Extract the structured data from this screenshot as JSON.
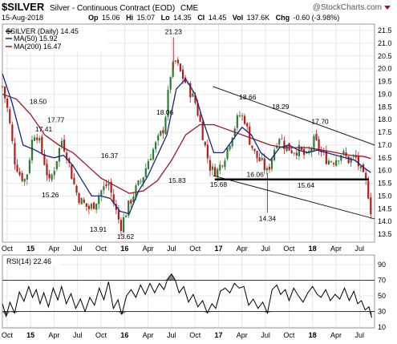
{
  "header": {
    "symbol": "$SILVER",
    "description": "Silver - Continuous Contract (EOD)",
    "exchange": "CME",
    "brand": "@StockCharts.com",
    "date": "15-Aug-2018",
    "quote": {
      "op_label": "Op",
      "op": "15.06",
      "hi_label": "Hi",
      "hi": "15.07",
      "lo_label": "Lo",
      "lo": "14.35",
      "cl_label": "Cl",
      "cl": "14.45",
      "vol_label": "Vol",
      "vol": "137.6K",
      "chg_label": "Chg",
      "chg": "-0.60 (-3.98%)"
    }
  },
  "colors": {
    "up": "#2e7d32",
    "down": "#b71c1c",
    "ma50": "#1a237e",
    "ma200": "#a0142a",
    "grid": "#d8d8d8",
    "trend": "#222222",
    "support": "#000000",
    "rsi": "#000000",
    "rsi_fill": "#666666"
  },
  "chart_data": {
    "type": "candlestick",
    "legend": {
      "position": "top-left",
      "entries": [
        {
          "label": "$SILVER (Daily) 14.45",
          "color": "#000000"
        },
        {
          "label": "MA(50) 15.92",
          "color": "#1a237e"
        },
        {
          "label": "MA(200) 16.47",
          "color": "#a0142a"
        }
      ]
    },
    "price_axis": {
      "min": 13.5,
      "max": 21.5,
      "position": "right",
      "ticks": [
        "21.5",
        "21.0",
        "20.5",
        "20.0",
        "19.5",
        "19.0",
        "18.5",
        "18.0",
        "17.5",
        "17.0",
        "16.5",
        "16.0",
        "15.5",
        "15.0",
        "14.5",
        "14.0",
        "13.5"
      ]
    },
    "time_axis": {
      "start": 2014.7,
      "end": 2018.66,
      "labels": [
        {
          "text": "Oct",
          "t": 2014.75
        },
        {
          "text": "15",
          "t": 2015.0
        },
        {
          "text": "Apr",
          "t": 2015.25
        },
        {
          "text": "Jul",
          "t": 2015.5
        },
        {
          "text": "Oct",
          "t": 2015.75
        },
        {
          "text": "16",
          "t": 2016.0
        },
        {
          "text": "Apr",
          "t": 2016.25
        },
        {
          "text": "Jul",
          "t": 2016.5
        },
        {
          "text": "Oct",
          "t": 2016.75
        },
        {
          "text": "17",
          "t": 2017.0
        },
        {
          "text": "Apr",
          "t": 2017.25
        },
        {
          "text": "Jul",
          "t": 2017.5
        },
        {
          "text": "Oct",
          "t": 2017.75
        },
        {
          "text": "18",
          "t": 2018.0
        },
        {
          "text": "Apr",
          "t": 2018.25
        },
        {
          "text": "Jul",
          "t": 2018.5
        }
      ]
    },
    "close_path": [
      [
        2014.7,
        19.3
      ],
      [
        2014.76,
        18.3
      ],
      [
        2014.83,
        16.4
      ],
      [
        2014.89,
        15.8
      ],
      [
        2014.95,
        15.6
      ],
      [
        2015.03,
        17.5
      ],
      [
        2015.07,
        17.4
      ],
      [
        2015.13,
        16.6
      ],
      [
        2015.2,
        15.5
      ],
      [
        2015.26,
        16.2
      ],
      [
        2015.33,
        17.2
      ],
      [
        2015.38,
        16.7
      ],
      [
        2015.45,
        15.6
      ],
      [
        2015.5,
        15.0
      ],
      [
        2015.56,
        14.7
      ],
      [
        2015.62,
        14.5
      ],
      [
        2015.68,
        14.7
      ],
      [
        2015.75,
        15.2
      ],
      [
        2015.83,
        15.5
      ],
      [
        2015.9,
        14.5
      ],
      [
        2015.96,
        13.8
      ],
      [
        2016.04,
        14.6
      ],
      [
        2016.11,
        15.2
      ],
      [
        2016.19,
        15.7
      ],
      [
        2016.26,
        16.5
      ],
      [
        2016.33,
        17.0
      ],
      [
        2016.42,
        17.7
      ],
      [
        2016.49,
        19.8
      ],
      [
        2016.54,
        20.3
      ],
      [
        2016.6,
        19.8
      ],
      [
        2016.67,
        19.3
      ],
      [
        2016.75,
        18.7
      ],
      [
        2016.81,
        17.8
      ],
      [
        2016.87,
        16.7
      ],
      [
        2016.92,
        16.0
      ],
      [
        2016.99,
        16.0
      ],
      [
        2017.07,
        16.6
      ],
      [
        2017.15,
        17.5
      ],
      [
        2017.22,
        18.2
      ],
      [
        2017.28,
        18.0
      ],
      [
        2017.33,
        17.2
      ],
      [
        2017.39,
        16.6
      ],
      [
        2017.46,
        16.3
      ],
      [
        2017.52,
        15.9
      ],
      [
        2017.58,
        16.7
      ],
      [
        2017.64,
        17.4
      ],
      [
        2017.7,
        17.0
      ],
      [
        2017.78,
        16.8
      ],
      [
        2017.86,
        16.8
      ],
      [
        2017.94,
        16.5
      ],
      [
        2018.02,
        17.2
      ],
      [
        2018.09,
        16.7
      ],
      [
        2018.16,
        16.4
      ],
      [
        2018.23,
        16.4
      ],
      [
        2018.31,
        16.7
      ],
      [
        2018.38,
        16.4
      ],
      [
        2018.46,
        16.5
      ],
      [
        2018.52,
        15.9
      ],
      [
        2018.58,
        15.4
      ],
      [
        2018.62,
        14.45
      ]
    ],
    "ma50": [
      [
        2014.7,
        19.8
      ],
      [
        2014.8,
        18.7
      ],
      [
        2014.92,
        17.0
      ],
      [
        2015.05,
        16.8
      ],
      [
        2015.15,
        16.6
      ],
      [
        2015.25,
        16.5
      ],
      [
        2015.35,
        16.6
      ],
      [
        2015.45,
        16.2
      ],
      [
        2015.55,
        15.6
      ],
      [
        2015.65,
        15.0
      ],
      [
        2015.75,
        15.0
      ],
      [
        2015.85,
        14.9
      ],
      [
        2015.95,
        14.4
      ],
      [
        2016.05,
        14.3
      ],
      [
        2016.15,
        15.2
      ],
      [
        2016.25,
        15.8
      ],
      [
        2016.35,
        16.6
      ],
      [
        2016.45,
        17.4
      ],
      [
        2016.55,
        19.2
      ],
      [
        2016.65,
        19.6
      ],
      [
        2016.75,
        19.0
      ],
      [
        2016.85,
        17.8
      ],
      [
        2016.95,
        16.7
      ],
      [
        2017.05,
        16.7
      ],
      [
        2017.15,
        17.2
      ],
      [
        2017.25,
        17.7
      ],
      [
        2017.35,
        17.4
      ],
      [
        2017.45,
        16.7
      ],
      [
        2017.55,
        16.4
      ],
      [
        2017.65,
        16.9
      ],
      [
        2017.75,
        17.0
      ],
      [
        2017.85,
        16.8
      ],
      [
        2017.95,
        16.7
      ],
      [
        2018.05,
        16.8
      ],
      [
        2018.15,
        16.7
      ],
      [
        2018.25,
        16.6
      ],
      [
        2018.35,
        16.5
      ],
      [
        2018.45,
        16.4
      ],
      [
        2018.55,
        16.1
      ],
      [
        2018.62,
        15.92
      ]
    ],
    "ma200": [
      [
        2014.7,
        19.0
      ],
      [
        2014.85,
        18.8
      ],
      [
        2015.0,
        18.2
      ],
      [
        2015.15,
        17.4
      ],
      [
        2015.3,
        17.0
      ],
      [
        2015.45,
        16.7
      ],
      [
        2015.6,
        16.2
      ],
      [
        2015.75,
        15.7
      ],
      [
        2015.9,
        15.4
      ],
      [
        2016.05,
        15.1
      ],
      [
        2016.2,
        15.2
      ],
      [
        2016.35,
        15.6
      ],
      [
        2016.5,
        16.4
      ],
      [
        2016.65,
        17.4
      ],
      [
        2016.8,
        17.8
      ],
      [
        2016.95,
        17.8
      ],
      [
        2017.1,
        17.6
      ],
      [
        2017.25,
        17.4
      ],
      [
        2017.4,
        17.2
      ],
      [
        2017.55,
        17.0
      ],
      [
        2017.7,
        16.9
      ],
      [
        2017.85,
        16.9
      ],
      [
        2017.95,
        16.9
      ],
      [
        2018.1,
        16.8
      ],
      [
        2018.25,
        16.7
      ],
      [
        2018.4,
        16.6
      ],
      [
        2018.55,
        16.55
      ],
      [
        2018.62,
        16.47
      ]
    ],
    "annotations": [
      {
        "text": "18.50",
        "t": 2015.08,
        "p": 18.5
      },
      {
        "text": "17.77",
        "t": 2015.27,
        "p": 17.77
      },
      {
        "text": "17.41",
        "t": 2015.14,
        "p": 17.41
      },
      {
        "text": "15.26",
        "t": 2015.21,
        "p": 15.26
      },
      {
        "text": "16.37",
        "t": 2015.84,
        "p": 16.37
      },
      {
        "text": "13.91",
        "t": 2015.72,
        "p": 13.91
      },
      {
        "text": "13.62",
        "t": 2016.01,
        "p": 13.62
      },
      {
        "text": "21.23",
        "t": 2016.52,
        "p": 21.23
      },
      {
        "text": "18.06",
        "t": 2016.43,
        "p": 18.06
      },
      {
        "text": "15.83",
        "t": 2016.56,
        "p": 15.83
      },
      {
        "text": "18.66",
        "t": 2017.31,
        "p": 18.66
      },
      {
        "text": "18.29",
        "t": 2017.66,
        "p": 18.29
      },
      {
        "text": "17.70",
        "t": 2018.08,
        "p": 17.7
      },
      {
        "text": "16.06",
        "t": 2017.39,
        "p": 16.06
      },
      {
        "text": "15.68",
        "t": 2017.0,
        "p": 15.68
      },
      {
        "text": "15.64",
        "t": 2017.93,
        "p": 15.64
      },
      {
        "text": "14.34",
        "t": 2017.52,
        "p": 14.34
      }
    ],
    "trendlines": {
      "upper": [
        [
          2016.94,
          19.3
        ],
        [
          2018.66,
          17.0
        ]
      ],
      "lower": [
        [
          2016.94,
          15.8
        ],
        [
          2018.66,
          14.1
        ]
      ],
      "support": [
        [
          2016.96,
          15.65
        ],
        [
          2018.6,
          15.65
        ]
      ]
    },
    "rsi": {
      "label": "RSI(14) 22.46",
      "min": 10,
      "max": 90,
      "ticks": [
        "90",
        "70",
        "50",
        "30",
        "10"
      ],
      "levels": [
        30,
        70
      ],
      "series": [
        [
          2014.7,
          40
        ],
        [
          2014.74,
          24
        ],
        [
          2014.78,
          42
        ],
        [
          2014.83,
          28
        ],
        [
          2014.88,
          55
        ],
        [
          2014.93,
          43
        ],
        [
          2014.98,
          62
        ],
        [
          2015.02,
          48
        ],
        [
          2015.06,
          58
        ],
        [
          2015.1,
          40
        ],
        [
          2015.14,
          54
        ],
        [
          2015.19,
          36
        ],
        [
          2015.24,
          60
        ],
        [
          2015.29,
          45
        ],
        [
          2015.33,
          62
        ],
        [
          2015.38,
          40
        ],
        [
          2015.43,
          53
        ],
        [
          2015.48,
          34
        ],
        [
          2015.53,
          46
        ],
        [
          2015.58,
          30
        ],
        [
          2015.63,
          48
        ],
        [
          2015.68,
          38
        ],
        [
          2015.73,
          60
        ],
        [
          2015.78,
          45
        ],
        [
          2015.83,
          68
        ],
        [
          2015.88,
          34
        ],
        [
          2015.93,
          45
        ],
        [
          2015.97,
          26
        ],
        [
          2016.02,
          50
        ],
        [
          2016.07,
          58
        ],
        [
          2016.12,
          48
        ],
        [
          2016.17,
          64
        ],
        [
          2016.22,
          52
        ],
        [
          2016.27,
          66
        ],
        [
          2016.32,
          54
        ],
        [
          2016.37,
          66
        ],
        [
          2016.42,
          58
        ],
        [
          2016.46,
          72
        ],
        [
          2016.5,
          78
        ],
        [
          2016.54,
          70
        ],
        [
          2016.58,
          54
        ],
        [
          2016.63,
          62
        ],
        [
          2016.68,
          42
        ],
        [
          2016.73,
          52
        ],
        [
          2016.78,
          36
        ],
        [
          2016.83,
          44
        ],
        [
          2016.88,
          28
        ],
        [
          2016.93,
          40
        ],
        [
          2016.97,
          34
        ],
        [
          2017.02,
          56
        ],
        [
          2017.07,
          60
        ],
        [
          2017.12,
          54
        ],
        [
          2017.17,
          66
        ],
        [
          2017.22,
          60
        ],
        [
          2017.27,
          62
        ],
        [
          2017.32,
          38
        ],
        [
          2017.37,
          46
        ],
        [
          2017.42,
          34
        ],
        [
          2017.47,
          42
        ],
        [
          2017.52,
          28
        ],
        [
          2017.57,
          58
        ],
        [
          2017.62,
          64
        ],
        [
          2017.66,
          52
        ],
        [
          2017.71,
          58
        ],
        [
          2017.75,
          44
        ],
        [
          2017.8,
          60
        ],
        [
          2017.85,
          50
        ],
        [
          2017.9,
          42
        ],
        [
          2017.95,
          54
        ],
        [
          2018.0,
          62
        ],
        [
          2018.05,
          52
        ],
        [
          2018.09,
          48
        ],
        [
          2018.14,
          58
        ],
        [
          2018.19,
          44
        ],
        [
          2018.24,
          52
        ],
        [
          2018.29,
          46
        ],
        [
          2018.34,
          60
        ],
        [
          2018.39,
          44
        ],
        [
          2018.44,
          56
        ],
        [
          2018.48,
          40
        ],
        [
          2018.52,
          44
        ],
        [
          2018.56,
          32
        ],
        [
          2018.6,
          36
        ],
        [
          2018.63,
          22
        ]
      ]
    }
  }
}
